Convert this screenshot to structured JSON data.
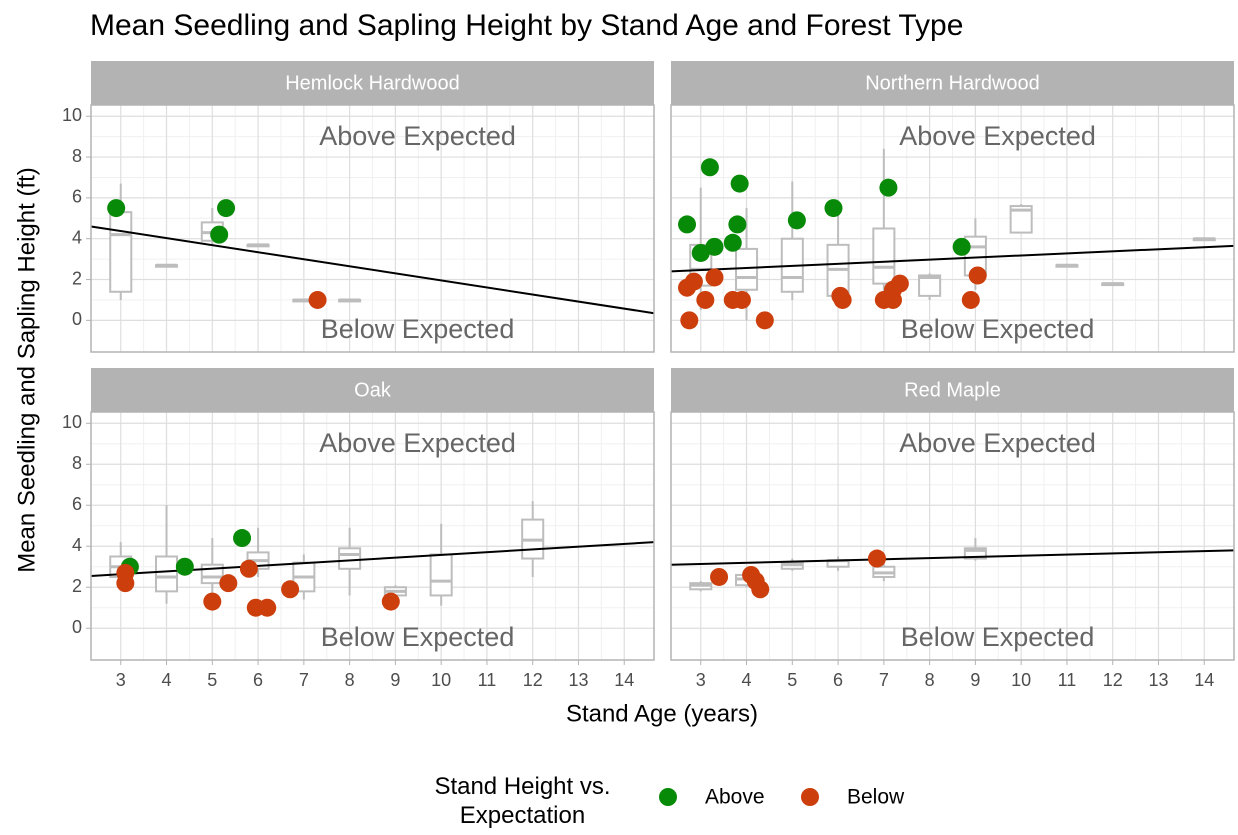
{
  "chart_data": {
    "type": "facet",
    "title": "Mean Seedling and Sapling Height by Stand Age and Forest Type",
    "x_label": "Stand Age (years)",
    "y_label": "Mean Seedling and Sapling Height (ft)",
    "xlim": [
      2.35,
      14.65
    ],
    "xticks": [
      3,
      4,
      5,
      6,
      7,
      8,
      9,
      10,
      11,
      12,
      13,
      14
    ],
    "ylim": [
      -1.55,
      10.55
    ],
    "yticks": [
      0,
      2,
      4,
      6,
      8,
      10
    ],
    "grid": true,
    "annotations": [
      "Above Expected",
      "Below Expected"
    ],
    "legend": {
      "title": "Stand Height vs. Expectation",
      "position": "bottom",
      "series": [
        {
          "name": "Above",
          "color": "#078a07"
        },
        {
          "name": "Below",
          "color": "#cc3e0b"
        }
      ]
    },
    "panels": [
      {
        "title": "Hemlock Hardwood",
        "boxes": [
          {
            "x": 3,
            "low": 1.0,
            "q1": 1.4,
            "median": 4.2,
            "q3": 5.3,
            "high": 6.7
          },
          {
            "x": 4,
            "low": 2.7,
            "q1": 2.7,
            "median": 2.7,
            "q3": 2.7,
            "high": 2.7
          },
          {
            "x": 5,
            "low": 3.7,
            "q1": 3.9,
            "median": 4.3,
            "q3": 4.8,
            "high": 5.5
          },
          {
            "x": 6,
            "low": 3.7,
            "q1": 3.7,
            "median": 3.7,
            "q3": 3.7,
            "high": 3.7
          },
          {
            "x": 7,
            "low": 1.0,
            "q1": 1.0,
            "median": 1.0,
            "q3": 1.0,
            "high": 1.0
          },
          {
            "x": 8,
            "low": 1.0,
            "q1": 1.0,
            "median": 1.0,
            "q3": 1.0,
            "high": 1.0
          }
        ],
        "points": [
          {
            "x": [
              2.9,
              5.15,
              5.3
            ],
            "y": [
              5.5,
              4.2,
              5.5
            ]
          },
          {
            "x": [
              7.3
            ],
            "y": [
              1.0
            ]
          }
        ],
        "line": {
          "x": [
            2.35,
            14.65
          ],
          "y": [
            4.6,
            0.35
          ]
        }
      },
      {
        "title": "Northern Hardwood",
        "boxes": [
          {
            "x": 3,
            "low": 0.5,
            "q1": 1.7,
            "median": 2.5,
            "q3": 3.7,
            "high": 6.5
          },
          {
            "x": 4,
            "low": 0.0,
            "q1": 1.5,
            "median": 2.1,
            "q3": 3.5,
            "high": 5.5
          },
          {
            "x": 5,
            "low": 1.0,
            "q1": 1.4,
            "median": 2.1,
            "q3": 4.0,
            "high": 6.8
          },
          {
            "x": 6,
            "low": 0.8,
            "q1": 1.2,
            "median": 2.5,
            "q3": 3.7,
            "high": 5.5
          },
          {
            "x": 7,
            "low": 1.0,
            "q1": 1.8,
            "median": 2.6,
            "q3": 4.5,
            "high": 8.4
          },
          {
            "x": 8,
            "low": 1.0,
            "q1": 1.2,
            "median": 2.1,
            "q3": 2.2,
            "high": 2.3
          },
          {
            "x": 9,
            "low": 1.5,
            "q1": 2.2,
            "median": 3.6,
            "q3": 4.1,
            "high": 5.0
          },
          {
            "x": 10,
            "low": 4.3,
            "q1": 4.3,
            "median": 5.4,
            "q3": 5.6,
            "high": 5.7
          },
          {
            "x": 11,
            "low": 2.7,
            "q1": 2.7,
            "median": 2.7,
            "q3": 2.7,
            "high": 2.7
          },
          {
            "x": 12,
            "low": 1.8,
            "q1": 1.8,
            "median": 1.8,
            "q3": 1.8,
            "high": 1.8
          },
          {
            "x": 14,
            "low": 4.0,
            "q1": 4.0,
            "median": 4.0,
            "q3": 4.0,
            "high": 4.0
          }
        ],
        "points": [
          {
            "x": [
              2.7,
              3.0,
              3.2,
              3.3,
              3.7,
              3.8,
              3.85,
              5.1,
              5.9,
              7.1,
              8.7
            ],
            "y": [
              4.7,
              3.3,
              7.5,
              3.6,
              3.8,
              4.7,
              6.7,
              4.9,
              5.5,
              6.5,
              3.6
            ]
          },
          {
            "x": [
              2.7,
              2.75,
              2.85,
              3.1,
              3.3,
              3.7,
              3.9,
              4.4,
              6.05,
              6.1,
              7.0,
              7.2,
              7.2,
              7.35,
              8.9,
              9.05
            ],
            "y": [
              1.6,
              0.0,
              1.9,
              1.0,
              2.1,
              1.0,
              1.0,
              0.0,
              1.2,
              1.0,
              1.0,
              1.0,
              1.5,
              1.8,
              1.0,
              2.2
            ]
          }
        ],
        "line": {
          "x": [
            2.35,
            14.65
          ],
          "y": [
            2.4,
            3.65
          ]
        }
      },
      {
        "title": "Oak",
        "boxes": [
          {
            "x": 3,
            "low": 2.0,
            "q1": 2.5,
            "median": 3.0,
            "q3": 3.5,
            "high": 4.2
          },
          {
            "x": 4,
            "low": 1.2,
            "q1": 1.8,
            "median": 2.5,
            "q3": 3.5,
            "high": 6.0
          },
          {
            "x": 5,
            "low": 1.3,
            "q1": 2.2,
            "median": 2.5,
            "q3": 3.1,
            "high": 4.4
          },
          {
            "x": 6,
            "low": 2.5,
            "q1": 2.9,
            "median": 3.3,
            "q3": 3.7,
            "high": 4.9
          },
          {
            "x": 7,
            "low": 1.4,
            "q1": 1.8,
            "median": 2.5,
            "q3": 3.2,
            "high": 3.6
          },
          {
            "x": 8,
            "low": 1.6,
            "q1": 2.9,
            "median": 3.6,
            "q3": 3.9,
            "high": 4.9
          },
          {
            "x": 9,
            "low": 1.3,
            "q1": 1.6,
            "median": 1.8,
            "q3": 2.0,
            "high": 2.1
          },
          {
            "x": 10,
            "low": 1.1,
            "q1": 1.6,
            "median": 2.3,
            "q3": 3.6,
            "high": 5.1
          },
          {
            "x": 12,
            "low": 2.5,
            "q1": 3.4,
            "median": 4.3,
            "q3": 5.3,
            "high": 6.2
          }
        ],
        "points": [
          {
            "x": [
              3.2,
              4.4,
              5.65
            ],
            "y": [
              3.0,
              3.0,
              4.4
            ]
          },
          {
            "x": [
              3.1,
              3.1,
              5.0,
              5.35,
              5.8,
              5.95,
              6.2,
              6.7,
              8.9
            ],
            "y": [
              2.7,
              2.2,
              1.3,
              2.2,
              2.9,
              1.0,
              1.0,
              1.9,
              1.3
            ]
          }
        ],
        "line": {
          "x": [
            2.35,
            14.65
          ],
          "y": [
            2.55,
            4.2
          ]
        }
      },
      {
        "title": "Red Maple",
        "boxes": [
          {
            "x": 3,
            "low": 1.8,
            "q1": 1.9,
            "median": 2.1,
            "q3": 2.2,
            "high": 2.3
          },
          {
            "x": 4,
            "low": 2.0,
            "q1": 2.1,
            "median": 2.4,
            "q3": 2.6,
            "high": 2.8
          },
          {
            "x": 5,
            "low": 2.8,
            "q1": 2.9,
            "median": 3.1,
            "q3": 3.2,
            "high": 3.4
          },
          {
            "x": 6,
            "low": 2.8,
            "q1": 3.0,
            "median": 3.3,
            "q3": 3.3,
            "high": 3.5
          },
          {
            "x": 7,
            "low": 2.3,
            "q1": 2.5,
            "median": 2.7,
            "q3": 3.0,
            "high": 3.5
          },
          {
            "x": 9,
            "low": 3.3,
            "q1": 3.4,
            "median": 3.8,
            "q3": 3.9,
            "high": 4.4
          }
        ],
        "points": [
          {
            "x": [],
            "y": []
          },
          {
            "x": [
              3.4,
              4.1,
              4.2,
              4.3,
              6.85
            ],
            "y": [
              2.5,
              2.6,
              2.3,
              1.9,
              3.4
            ]
          }
        ],
        "line": {
          "x": [
            2.35,
            14.65
          ],
          "y": [
            3.1,
            3.8
          ]
        }
      }
    ]
  }
}
